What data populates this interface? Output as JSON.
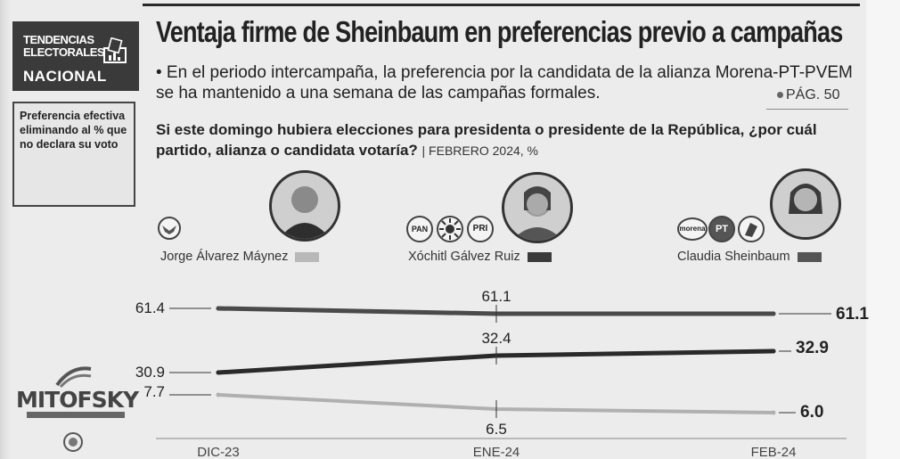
{
  "section": {
    "badge_line1": "TENDENCIAS",
    "badge_line2": "ELECTORALES",
    "badge_scope": "NACIONAL",
    "sidenote": "Preferencia efectiva eliminando al % que no declara su voto"
  },
  "headline": "Ventaja firme de Sheinbaum en preferencias previo a campañas",
  "bullet": "• En el periodo intercampaña, la preferencia por la candidata de la alianza Morena-PT-PVEM se ha mantenido a una semana de las campañas formales.",
  "page_ref": "PÁG. 50",
  "question": "Si este domingo hubiera elecciones para presidenta o presidente de la República, ¿por cuál partido, alianza o candidata votaría?",
  "question_meta": "| FEBRERO 2024, %",
  "branding": {
    "name": "MITOFSKY"
  },
  "candidates": [
    {
      "name": "Jorge Álvarez Máynez",
      "color": "#b8b8b8",
      "party_logos": [
        ""
      ]
    },
    {
      "name": "Xóchitl Gálvez Ruiz",
      "color": "#3a3a3a",
      "party_logos": [
        "PAN",
        "",
        "PRI"
      ]
    },
    {
      "name": "Claudia Sheinbaum",
      "color": "#555555",
      "party_logos": [
        "morena",
        "PT",
        ""
      ]
    }
  ],
  "colors": {
    "sheinbaum": "#4a4a4a",
    "galvez": "#2a2a2a",
    "maynez": "#b0b0b0"
  },
  "chart_data": {
    "type": "line",
    "categories": [
      "DIC-23",
      "ENE-24",
      "FEB-24"
    ],
    "series": [
      {
        "name": "Claudia Sheinbaum",
        "values": [
          61.4,
          61.1,
          61.1
        ],
        "labels": [
          "61.4",
          "61.1",
          "61.1"
        ],
        "color": "#4a4a4a"
      },
      {
        "name": "Xóchitl Gálvez Ruiz",
        "values": [
          30.9,
          32.4,
          32.9
        ],
        "labels": [
          "30.9",
          "32.4",
          "32.9"
        ],
        "color": "#2a2a2a"
      },
      {
        "name": "Jorge Álvarez Máynez",
        "values": [
          7.7,
          6.5,
          6.0
        ],
        "labels": [
          "7.7",
          "6.5",
          "6.0"
        ],
        "color": "#b0b0b0"
      }
    ],
    "xlabel": "",
    "ylabel": "",
    "grid": false
  }
}
